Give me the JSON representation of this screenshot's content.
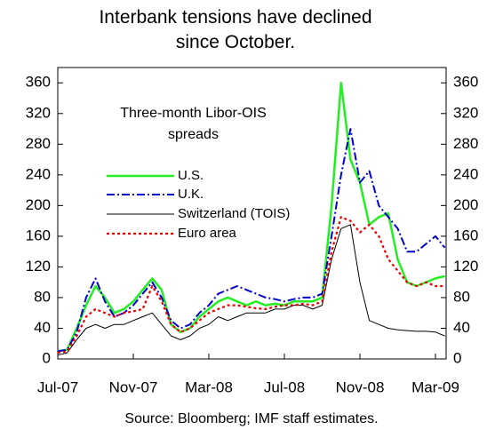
{
  "chart_data": {
    "type": "line",
    "title": "Interbank tensions have declined since October.",
    "annotation": "Three-month Libor-OIS spreads",
    "source": "Source: Bloomberg; IMF staff estimates.",
    "categories": [
      "Jul-07",
      null,
      null,
      null,
      null,
      null,
      null,
      null,
      "Nov-07",
      null,
      null,
      null,
      null,
      null,
      null,
      null,
      "Mar-08",
      null,
      null,
      null,
      null,
      null,
      null,
      null,
      "Jul-08",
      null,
      null,
      null,
      null,
      null,
      null,
      null,
      "Nov-08",
      null,
      null,
      null,
      null,
      null,
      null,
      null,
      "Mar-09",
      null
    ],
    "series": [
      {
        "name": "U.S.",
        "color": "#22ee22",
        "style": "solid",
        "values": [
          10,
          12,
          40,
          70,
          95,
          80,
          60,
          65,
          75,
          90,
          105,
          90,
          45,
          35,
          40,
          55,
          65,
          75,
          80,
          75,
          70,
          75,
          70,
          72,
          70,
          75,
          75,
          75,
          80,
          200,
          360,
          260,
          230,
          175,
          185,
          190,
          130,
          100,
          95,
          100,
          105,
          108
        ]
      },
      {
        "name": "U.K.",
        "color": "#0000cc",
        "style": "dashdot",
        "values": [
          10,
          12,
          35,
          80,
          105,
          75,
          55,
          60,
          70,
          85,
          100,
          80,
          50,
          40,
          45,
          60,
          70,
          85,
          90,
          95,
          90,
          85,
          80,
          78,
          75,
          78,
          80,
          80,
          85,
          160,
          240,
          300,
          230,
          245,
          200,
          185,
          170,
          140,
          140,
          150,
          160,
          145
        ]
      },
      {
        "name": "Switzerland (TOIS)",
        "color": "#000000",
        "style": "thin",
        "values": [
          5,
          8,
          25,
          40,
          45,
          40,
          45,
          45,
          50,
          55,
          60,
          45,
          30,
          25,
          30,
          40,
          45,
          55,
          50,
          55,
          60,
          60,
          60,
          65,
          65,
          70,
          70,
          65,
          70,
          130,
          170,
          175,
          100,
          50,
          45,
          40,
          38,
          37,
          36,
          36,
          35,
          30
        ]
      },
      {
        "name": "Euro area",
        "color": "#ee0000",
        "style": "dotted",
        "values": [
          8,
          10,
          30,
          55,
          65,
          60,
          55,
          60,
          62,
          65,
          95,
          75,
          45,
          35,
          40,
          50,
          60,
          65,
          70,
          70,
          68,
          66,
          65,
          68,
          70,
          70,
          72,
          70,
          75,
          140,
          185,
          180,
          165,
          175,
          160,
          130,
          115,
          100,
          95,
          100,
          95,
          95
        ]
      }
    ],
    "ylim": [
      0,
      380
    ],
    "yticks": [
      0,
      40,
      80,
      120,
      160,
      200,
      240,
      280,
      320,
      360
    ],
    "y2lim": [
      0,
      380
    ],
    "y2ticks": [
      0,
      40,
      80,
      120,
      160,
      200,
      240,
      280,
      320,
      360
    ],
    "grid": false
  }
}
